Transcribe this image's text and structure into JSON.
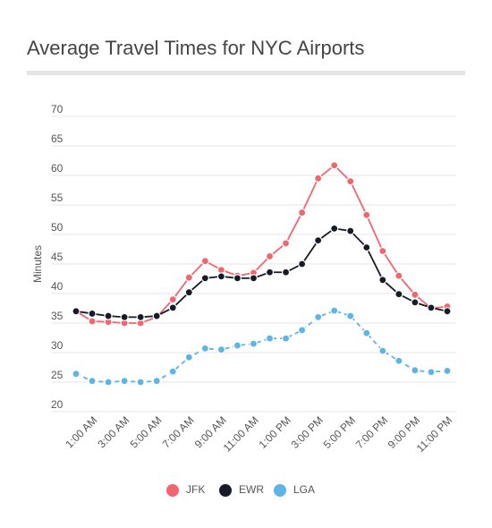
{
  "chart_data": {
    "type": "line",
    "title": "Average Travel Times for NYC Airports",
    "y_label": "Minutes",
    "categories": [
      null,
      "1:00 AM",
      null,
      "3:00 AM",
      null,
      "5:00 AM",
      null,
      "7:00 AM",
      null,
      "9:00 AM",
      null,
      "11:00 AM",
      null,
      "1:00 PM",
      null,
      "3:00 PM",
      null,
      "5:00 PM",
      null,
      "7:00 PM",
      null,
      "9:00 PM",
      null,
      "11:00 PM"
    ],
    "series": [
      {
        "name": "JFK",
        "color": "#f4646e",
        "dashed": false,
        "values": [
          37,
          35.3,
          35.2,
          35,
          35,
          36,
          39,
          42.7,
          45.5,
          44,
          43,
          43.5,
          46.3,
          48.5,
          53.7,
          59.5,
          61.7,
          59,
          53.3,
          47.2,
          43,
          39.8,
          37.5,
          37.8
        ]
      },
      {
        "name": "EWR",
        "color": "#151c28",
        "dashed": false,
        "values": [
          37,
          36.6,
          36.2,
          36,
          36,
          36.2,
          37.6,
          40.2,
          42.6,
          42.9,
          42.6,
          42.6,
          43.6,
          43.6,
          45,
          49,
          51,
          50.6,
          47.8,
          42.3,
          39.9,
          38.5,
          37.6,
          37
        ]
      },
      {
        "name": "LGA",
        "color": "#5bb5e5",
        "dashed": true,
        "values": [
          26.4,
          25.2,
          25,
          25.2,
          25,
          25.2,
          26.8,
          29.2,
          30.7,
          30.5,
          31.2,
          31.5,
          32.4,
          32.4,
          33.8,
          36,
          37.1,
          36.2,
          33.3,
          30.3,
          28.6,
          27,
          26.7,
          26.9
        ]
      }
    ],
    "ylim": [
      20,
      70
    ],
    "yticks": [
      20,
      25,
      30,
      35,
      40,
      45,
      50,
      55,
      60,
      65,
      70
    ],
    "grid": true,
    "legend": "bottom"
  }
}
